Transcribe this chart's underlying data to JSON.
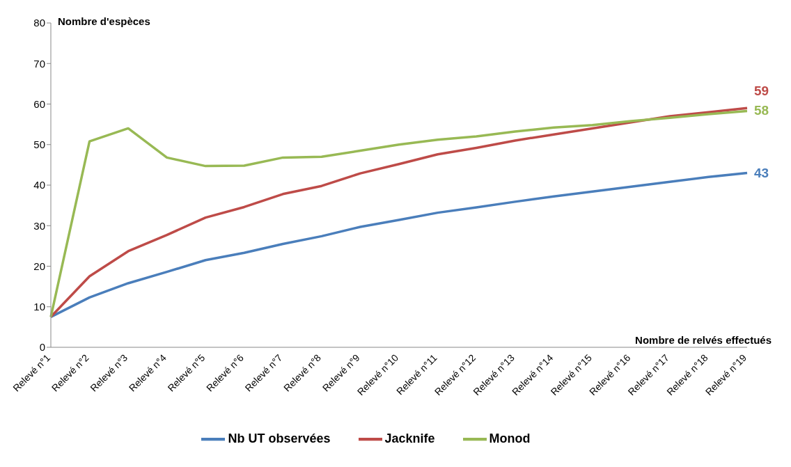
{
  "chart_data": {
    "type": "line",
    "xlabel": "Nombre de relvés effectués",
    "ylabel": "Nombre d'espèces",
    "categories": [
      "Relevé n°1",
      "Relevé n°2",
      "Relevé n°3",
      "Relevé n°4",
      "Relevé n°5",
      "Relevé n°6",
      "Relevé n°7",
      "Relevé n°8",
      "Relevé n°9",
      "Relevé n°10",
      "Relevé n°11",
      "Relevé n°12",
      "Relevé n°13",
      "Relevé n°14",
      "Relevé n°15",
      "Relevé n°16",
      "Relevé n°17",
      "Relevé n°18",
      "Relevé n°19"
    ],
    "series": [
      {
        "name": "Nb UT observées",
        "color": "#4a7ebb",
        "values": [
          7.5,
          12.3,
          15.8,
          18.6,
          21.5,
          23.3,
          25.5,
          27.4,
          29.7,
          31.4,
          33.2,
          34.5,
          35.9,
          37.2,
          38.4,
          39.6,
          40.8,
          42,
          43
        ],
        "value_labels": [
          null,
          null,
          null,
          null,
          null,
          null,
          null,
          null,
          null,
          null,
          null,
          null,
          null,
          null,
          null,
          null,
          null,
          null,
          "43"
        ]
      },
      {
        "name": "Jacknife",
        "color": "#be4b48",
        "values": [
          7.5,
          17.5,
          23.7,
          27.7,
          32,
          34.6,
          37.8,
          39.8,
          42.9,
          45.2,
          47.6,
          49.2,
          51,
          52.5,
          54,
          55.5,
          57,
          58,
          59
        ],
        "value_labels": [
          null,
          null,
          null,
          null,
          null,
          null,
          null,
          null,
          null,
          null,
          null,
          null,
          null,
          null,
          null,
          null,
          null,
          null,
          "59"
        ]
      },
      {
        "name": "Monod",
        "color": "#98b954",
        "values": [
          7.5,
          50.8,
          54,
          46.8,
          44.7,
          44.8,
          46.8,
          47,
          48.5,
          50,
          51.2,
          52,
          53.2,
          54.2,
          54.8,
          55.8,
          56.6,
          57.5,
          58.3
        ],
        "value_labels": [
          null,
          null,
          null,
          null,
          null,
          null,
          null,
          null,
          null,
          null,
          null,
          null,
          null,
          null,
          null,
          null,
          null,
          null,
          "58"
        ]
      }
    ],
    "ylim": [
      0,
      80
    ],
    "yticks": [
      0,
      10,
      20,
      30,
      40,
      50,
      60,
      70,
      80
    ],
    "grid": false,
    "legend": "bottom",
    "marker": "none",
    "line_style": "solid"
  }
}
